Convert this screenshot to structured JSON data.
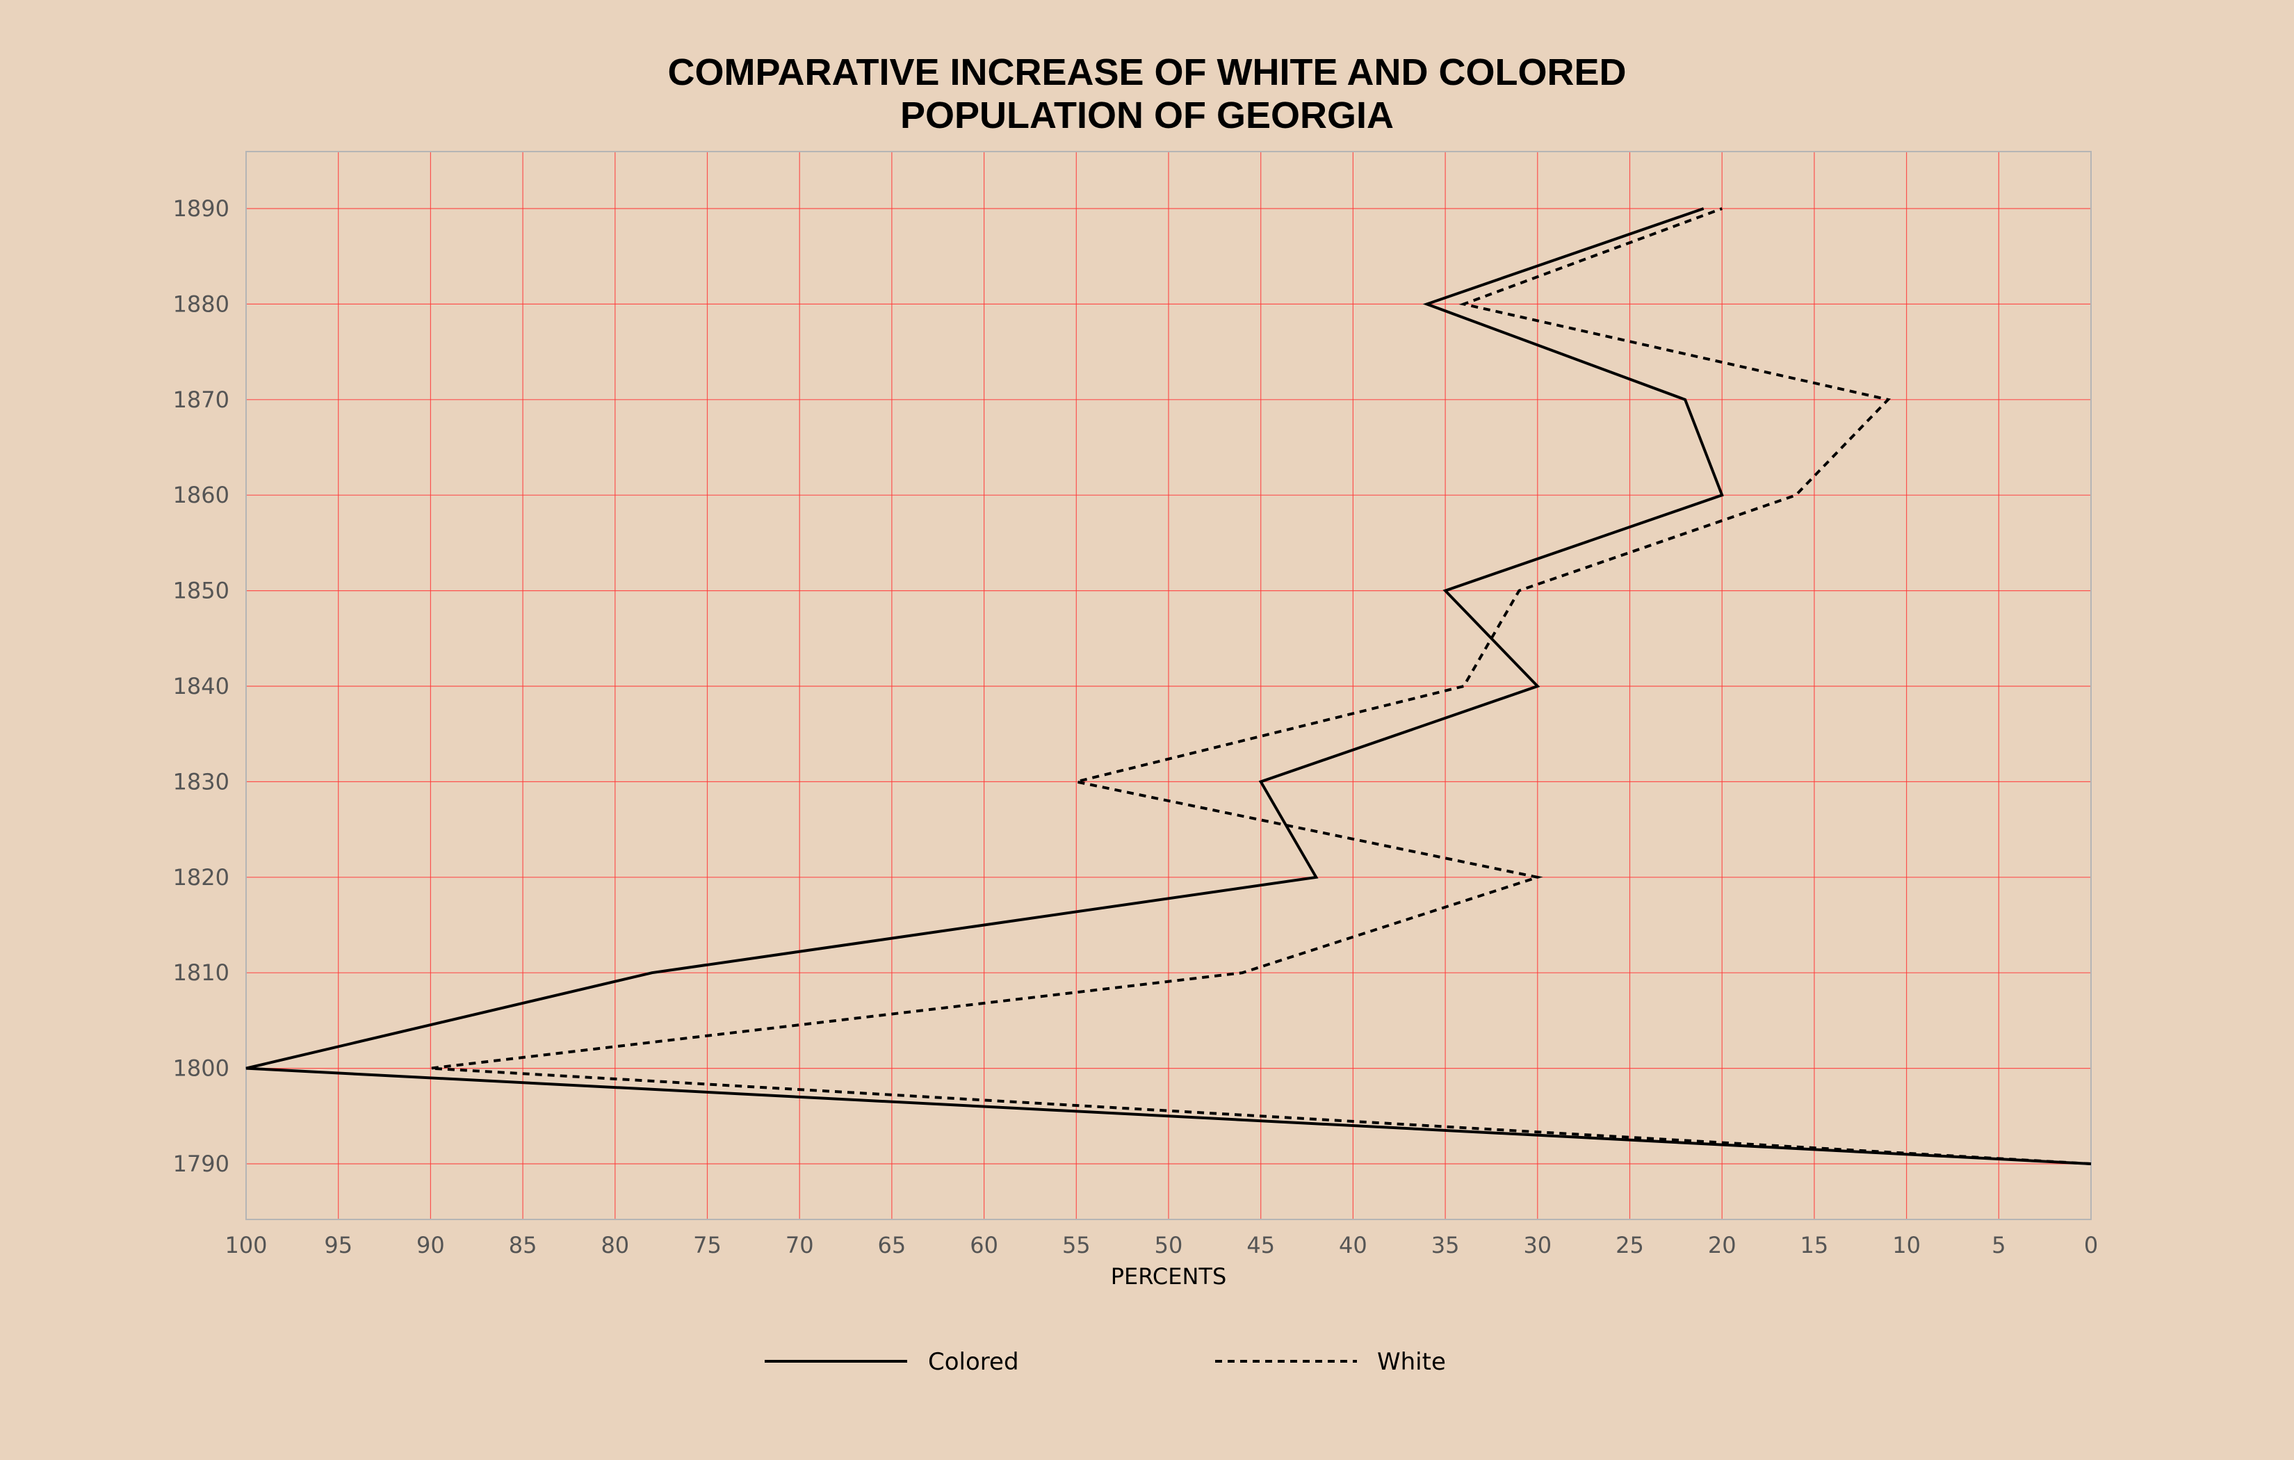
{
  "chart_data": {
    "type": "line",
    "title_lines": [
      "COMPARATIVE INCREASE OF WHITE AND COLORED",
      "POPULATION OF GEORGIA"
    ],
    "xlabel": "PERCENTS",
    "ylabel": "",
    "x_axis_reversed": true,
    "xlim": [
      0,
      100
    ],
    "ylim": [
      1790,
      1890
    ],
    "x_ticks": [
      "100",
      "95",
      "90",
      "85",
      "80",
      "75",
      "70",
      "65",
      "60",
      "55",
      "50",
      "45",
      "40",
      "35",
      "30",
      "25",
      "20",
      "15",
      "10",
      "5",
      "0"
    ],
    "y_ticks": [
      "1890",
      "1880",
      "1870",
      "1860",
      "1850",
      "1840",
      "1830",
      "1820",
      "1810",
      "1800",
      "1790"
    ],
    "grid": true,
    "grid_color": "#ff3b3b",
    "background": "#e9d3bd",
    "legend_position": "bottom-center",
    "series": [
      {
        "name": "Colored",
        "style": "solid",
        "color": "#000000",
        "points": [
          {
            "year": 1790,
            "percent": 0
          },
          {
            "year": 1800,
            "percent": 100
          },
          {
            "year": 1810,
            "percent": 78
          },
          {
            "year": 1820,
            "percent": 42
          },
          {
            "year": 1830,
            "percent": 45
          },
          {
            "year": 1840,
            "percent": 30
          },
          {
            "year": 1850,
            "percent": 35
          },
          {
            "year": 1860,
            "percent": 20
          },
          {
            "year": 1870,
            "percent": 22
          },
          {
            "year": 1880,
            "percent": 36
          },
          {
            "year": 1890,
            "percent": 21
          }
        ]
      },
      {
        "name": "White",
        "style": "dashed",
        "color": "#000000",
        "points": [
          {
            "year": 1790,
            "percent": 0
          },
          {
            "year": 1800,
            "percent": 90
          },
          {
            "year": 1810,
            "percent": 46
          },
          {
            "year": 1820,
            "percent": 30
          },
          {
            "year": 1830,
            "percent": 55
          },
          {
            "year": 1840,
            "percent": 34
          },
          {
            "year": 1850,
            "percent": 31
          },
          {
            "year": 1860,
            "percent": 16
          },
          {
            "year": 1870,
            "percent": 11
          },
          {
            "year": 1880,
            "percent": 34
          },
          {
            "year": 1890,
            "percent": 20
          }
        ]
      }
    ]
  }
}
